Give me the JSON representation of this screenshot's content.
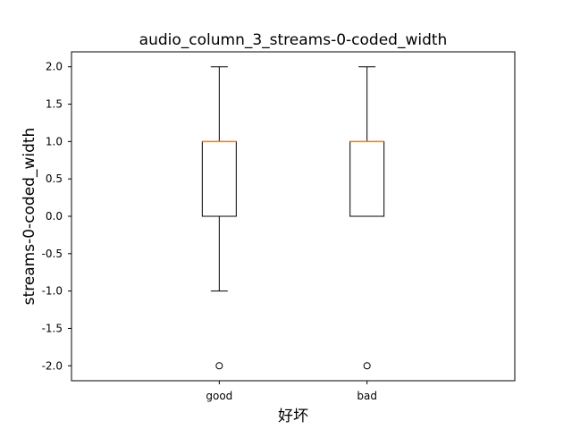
{
  "chart_data": {
    "type": "box",
    "title": "audio_column_3_streams-0-coded_width",
    "xlabel": "好坏",
    "ylabel": "streams-0-coded_width",
    "categories": [
      "good",
      "bad"
    ],
    "ylim": [
      -2.2,
      2.2
    ],
    "yticks": [
      2.0,
      1.5,
      1.0,
      0.5,
      0.0,
      -0.5,
      -1.0,
      -1.5,
      -2.0
    ],
    "ytick_labels": [
      "2.0",
      "1.5",
      "1.0",
      "0.5",
      "0.0",
      "-0.5",
      "-1.0",
      "-1.5",
      "-2.0"
    ],
    "grid": false,
    "boxes": [
      {
        "category": "good",
        "whisker_low": -1.0,
        "q1": 0.0,
        "median": 1.0,
        "q3": 1.0,
        "whisker_high": 2.0,
        "outliers": [
          -2.0
        ]
      },
      {
        "category": "bad",
        "whisker_low": 0.0,
        "q1": 0.0,
        "median": 1.0,
        "q3": 1.0,
        "whisker_high": 2.0,
        "outliers": [
          -2.0
        ]
      }
    ],
    "colors": {
      "box": "#000000",
      "median": "#ff7f0e",
      "outlier": "#000000"
    }
  }
}
